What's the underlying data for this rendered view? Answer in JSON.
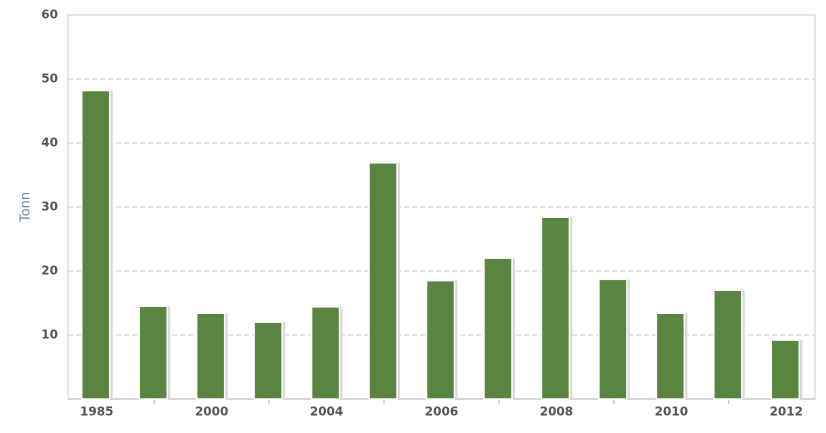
{
  "chart_data": {
    "type": "bar",
    "y_label": "Tonn",
    "categories": [
      "1985",
      null,
      "2000",
      null,
      "2004",
      null,
      "2006",
      null,
      "2008",
      null,
      "2010",
      null,
      "2012"
    ],
    "values": [
      48.2,
      14.5,
      13.4,
      12,
      14.4,
      36.9,
      18.5,
      22,
      28.4,
      18.7,
      13.4,
      17,
      9.2
    ],
    "color": "#5a8540",
    "ylim": [
      0,
      60
    ],
    "yticks": [
      10,
      20,
      30,
      40,
      50,
      60
    ],
    "grid": true
  }
}
